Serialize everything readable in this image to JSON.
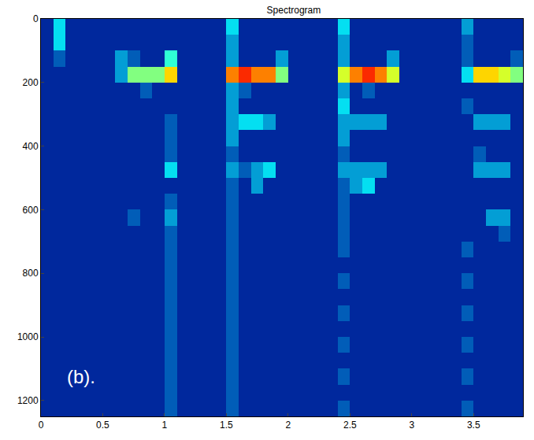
{
  "chart_data": {
    "type": "heatmap",
    "title": "Spectrogram",
    "annotations": [
      "(b)."
    ],
    "color": "Jet",
    "xlim": [
      0,
      3.9
    ],
    "xticks": [
      0,
      0.5,
      1,
      1.5,
      2,
      2.5,
      3,
      3.5
    ],
    "ylim": [
      1250,
      0
    ],
    "yticks": [
      0,
      200,
      400,
      600,
      800,
      1000,
      1200
    ],
    "zlim": [
      0,
      12
    ],
    "x": [
      0.05,
      0.15,
      0.25,
      0.35,
      0.45,
      0.55,
      0.65,
      0.75,
      0.85,
      0.95,
      1.05,
      1.15,
      1.25,
      1.35,
      1.45,
      1.55,
      1.65,
      1.75,
      1.85,
      1.95,
      2.05,
      2.15,
      2.25,
      2.35,
      2.45,
      2.55,
      2.65,
      2.75,
      2.85,
      2.95,
      3.05,
      3.15,
      3.25,
      3.35,
      3.45,
      3.55,
      3.65,
      3.75,
      3.85
    ],
    "y": [
      25,
      75,
      125,
      175,
      225,
      275,
      325,
      375,
      425,
      475,
      525,
      575,
      625,
      675,
      725,
      775,
      825,
      875,
      925,
      975,
      1025,
      1075,
      1125,
      1175,
      1225
    ],
    "z": [
      [
        1,
        4,
        1,
        1,
        1,
        1,
        1,
        1,
        1,
        1,
        1,
        1,
        1,
        1,
        1,
        4,
        1,
        1,
        1,
        1,
        1,
        1,
        1,
        1,
        4,
        1,
        1,
        1,
        1,
        1,
        1,
        1,
        1,
        1,
        3,
        1,
        1,
        1,
        1
      ],
      [
        1,
        4,
        1,
        1,
        1,
        1,
        1,
        1,
        1,
        1,
        1,
        1,
        1,
        1,
        1,
        3,
        1,
        1,
        1,
        1,
        1,
        1,
        1,
        1,
        3,
        1,
        1,
        1,
        1,
        1,
        1,
        1,
        1,
        1,
        2,
        1,
        1,
        1,
        1
      ],
      [
        1,
        2,
        1,
        1,
        1,
        1,
        3,
        2,
        1,
        1,
        5,
        1,
        1,
        1,
        1,
        3,
        1,
        1,
        1,
        3,
        1,
        1,
        1,
        1,
        3,
        1,
        1,
        1,
        3,
        1,
        1,
        1,
        1,
        1,
        2,
        1,
        1,
        1,
        2
      ],
      [
        1,
        1,
        1,
        1,
        1,
        1,
        3,
        6,
        6,
        6,
        8,
        1,
        1,
        1,
        1,
        9,
        10,
        9,
        9,
        6,
        1,
        1,
        1,
        1,
        7,
        9,
        10,
        9,
        7,
        1,
        1,
        1,
        1,
        1,
        4,
        8,
        8,
        7,
        6
      ],
      [
        1,
        1,
        1,
        1,
        1,
        1,
        1,
        1,
        2,
        1,
        1,
        1,
        1,
        1,
        1,
        3,
        2,
        1,
        1,
        1,
        1,
        1,
        1,
        1,
        3,
        1,
        2,
        1,
        1,
        1,
        1,
        1,
        1,
        1,
        1,
        1,
        1,
        1,
        1
      ],
      [
        1,
        1,
        1,
        1,
        1,
        1,
        1,
        1,
        1,
        1,
        1,
        1,
        1,
        1,
        1,
        3,
        1,
        1,
        1,
        1,
        1,
        1,
        1,
        1,
        4,
        1,
        1,
        1,
        1,
        1,
        1,
        1,
        1,
        1,
        2,
        1,
        1,
        1,
        1
      ],
      [
        1,
        1,
        1,
        1,
        1,
        1,
        1,
        1,
        1,
        1,
        2,
        1,
        1,
        1,
        1,
        3,
        4,
        4,
        3,
        1,
        1,
        1,
        1,
        1,
        3,
        3,
        3,
        3,
        1,
        1,
        1,
        1,
        1,
        1,
        1,
        3,
        3,
        3,
        1
      ],
      [
        1,
        1,
        1,
        1,
        1,
        1,
        1,
        1,
        1,
        1,
        2,
        1,
        1,
        1,
        1,
        3,
        1,
        1,
        1,
        1,
        1,
        1,
        1,
        1,
        3,
        1,
        1,
        1,
        1,
        1,
        1,
        1,
        1,
        1,
        1,
        1,
        1,
        1,
        1
      ],
      [
        1,
        1,
        1,
        1,
        1,
        1,
        1,
        1,
        1,
        1,
        2,
        1,
        1,
        1,
        1,
        2,
        1,
        1,
        1,
        1,
        1,
        1,
        1,
        1,
        2,
        1,
        1,
        1,
        1,
        1,
        1,
        1,
        1,
        1,
        1,
        2,
        1,
        1,
        1
      ],
      [
        1,
        1,
        1,
        1,
        1,
        1,
        1,
        1,
        1,
        1,
        4,
        1,
        1,
        1,
        1,
        3,
        2,
        3,
        4,
        1,
        1,
        1,
        1,
        1,
        3,
        3,
        3,
        3,
        1,
        1,
        1,
        1,
        1,
        1,
        1,
        3,
        3,
        3,
        1
      ],
      [
        1,
        1,
        1,
        1,
        1,
        1,
        1,
        1,
        1,
        1,
        1,
        1,
        1,
        1,
        1,
        2,
        1,
        3,
        1,
        1,
        1,
        1,
        1,
        1,
        2,
        3,
        4,
        1,
        1,
        1,
        1,
        1,
        1,
        1,
        1,
        1,
        1,
        1,
        1
      ],
      [
        1,
        1,
        1,
        1,
        1,
        1,
        1,
        1,
        1,
        1,
        2,
        1,
        1,
        1,
        1,
        2,
        1,
        1,
        1,
        1,
        1,
        1,
        1,
        1,
        2,
        1,
        1,
        1,
        1,
        1,
        1,
        1,
        1,
        1,
        1,
        1,
        1,
        1,
        1
      ],
      [
        1,
        1,
        1,
        1,
        1,
        1,
        1,
        2,
        1,
        1,
        3,
        1,
        1,
        1,
        1,
        2,
        1,
        1,
        1,
        1,
        1,
        1,
        1,
        1,
        2,
        1,
        1,
        1,
        1,
        1,
        1,
        1,
        1,
        1,
        1,
        1,
        3,
        3,
        1
      ],
      [
        1,
        1,
        1,
        1,
        1,
        1,
        1,
        1,
        1,
        1,
        2,
        1,
        1,
        1,
        1,
        2,
        1,
        1,
        1,
        1,
        1,
        1,
        1,
        1,
        2,
        1,
        1,
        1,
        1,
        1,
        1,
        1,
        1,
        1,
        1,
        1,
        1,
        2,
        1
      ],
      [
        1,
        1,
        1,
        1,
        1,
        1,
        1,
        1,
        1,
        1,
        2,
        1,
        1,
        1,
        1,
        2,
        1,
        1,
        1,
        1,
        1,
        1,
        1,
        1,
        2,
        1,
        1,
        1,
        1,
        1,
        1,
        1,
        1,
        1,
        2,
        1,
        1,
        1,
        1
      ],
      [
        1,
        1,
        1,
        1,
        1,
        1,
        1,
        1,
        1,
        1,
        2,
        1,
        1,
        1,
        1,
        2,
        1,
        1,
        1,
        1,
        1,
        1,
        1,
        1,
        1,
        1,
        1,
        1,
        1,
        1,
        1,
        1,
        1,
        1,
        1,
        1,
        1,
        1,
        1
      ],
      [
        1,
        1,
        1,
        1,
        1,
        1,
        1,
        1,
        1,
        1,
        2,
        1,
        1,
        1,
        1,
        2,
        1,
        1,
        1,
        1,
        1,
        1,
        1,
        1,
        2,
        1,
        1,
        1,
        1,
        1,
        1,
        1,
        1,
        1,
        2,
        1,
        1,
        1,
        1
      ],
      [
        1,
        1,
        1,
        1,
        1,
        1,
        1,
        1,
        1,
        1,
        2,
        1,
        1,
        1,
        1,
        2,
        1,
        1,
        1,
        1,
        1,
        1,
        1,
        1,
        1,
        1,
        1,
        1,
        1,
        1,
        1,
        1,
        1,
        1,
        1,
        1,
        1,
        1,
        1
      ],
      [
        1,
        1,
        1,
        1,
        1,
        1,
        1,
        1,
        1,
        1,
        2,
        1,
        1,
        1,
        1,
        2,
        1,
        1,
        1,
        1,
        1,
        1,
        1,
        1,
        2,
        1,
        1,
        1,
        1,
        1,
        1,
        1,
        1,
        1,
        2,
        1,
        1,
        1,
        1
      ],
      [
        1,
        1,
        1,
        1,
        1,
        1,
        1,
        1,
        1,
        1,
        2,
        1,
        1,
        1,
        1,
        2,
        1,
        1,
        1,
        1,
        1,
        1,
        1,
        1,
        1,
        1,
        1,
        1,
        1,
        1,
        1,
        1,
        1,
        1,
        1,
        1,
        1,
        1,
        1
      ],
      [
        1,
        1,
        1,
        1,
        1,
        1,
        1,
        1,
        1,
        1,
        2,
        1,
        1,
        1,
        1,
        2,
        1,
        1,
        1,
        1,
        1,
        1,
        1,
        1,
        2,
        1,
        1,
        1,
        1,
        1,
        1,
        1,
        1,
        1,
        2,
        1,
        1,
        1,
        1
      ],
      [
        1,
        1,
        1,
        1,
        1,
        1,
        1,
        1,
        1,
        1,
        2,
        1,
        1,
        1,
        1,
        2,
        1,
        1,
        1,
        1,
        1,
        1,
        1,
        1,
        1,
        1,
        1,
        1,
        1,
        1,
        1,
        1,
        1,
        1,
        1,
        1,
        1,
        1,
        1
      ],
      [
        1,
        1,
        1,
        1,
        1,
        1,
        1,
        1,
        1,
        1,
        2,
        1,
        1,
        1,
        1,
        2,
        1,
        1,
        1,
        1,
        1,
        1,
        1,
        1,
        2,
        1,
        1,
        1,
        1,
        1,
        1,
        1,
        1,
        1,
        2,
        1,
        1,
        1,
        1
      ],
      [
        1,
        1,
        1,
        1,
        1,
        1,
        1,
        1,
        1,
        1,
        2,
        1,
        1,
        1,
        1,
        2,
        1,
        1,
        1,
        1,
        1,
        1,
        1,
        1,
        1,
        1,
        1,
        1,
        1,
        1,
        1,
        1,
        1,
        1,
        1,
        1,
        1,
        1,
        1
      ],
      [
        1,
        1,
        1,
        1,
        1,
        1,
        1,
        1,
        1,
        1,
        2,
        1,
        1,
        1,
        1,
        2,
        1,
        1,
        1,
        1,
        1,
        1,
        1,
        1,
        2,
        1,
        1,
        1,
        1,
        1,
        1,
        1,
        1,
        1,
        2,
        1,
        1,
        1,
        1
      ]
    ]
  }
}
